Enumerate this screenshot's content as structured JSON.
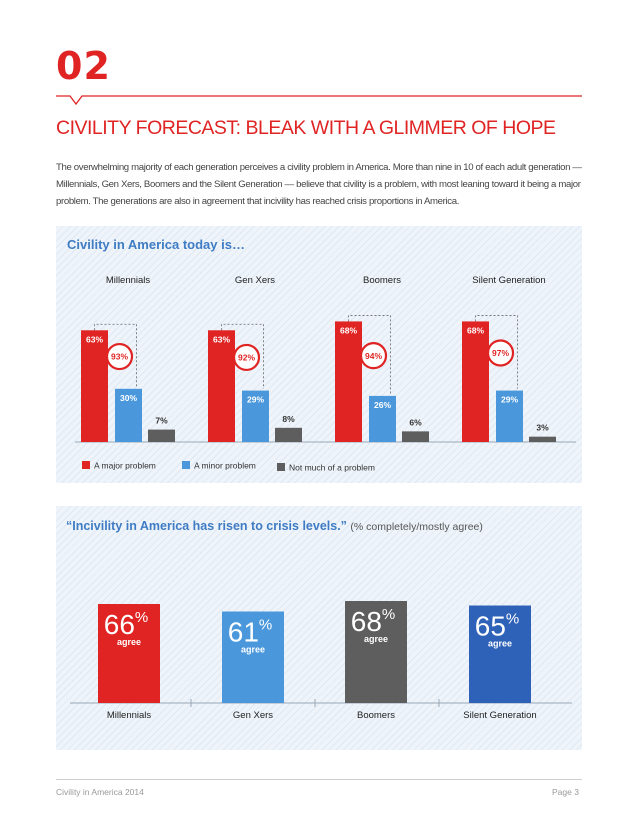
{
  "page": {
    "section_number": "02",
    "headline": "CIVILITY FORECAST: BLEAK WITH A GLIMMER OF HOPE",
    "intro": "The overwhelming majority of each generation perceives a civility problem in America. More than nine in 10 of each adult generation — Millennials, Gen Xers, Boomers and the Silent Generation — believe that civility is a problem, with most leaning toward it being a major problem. The generations are also in agreement that incivility has reached crisis proportions in America.",
    "footer_left": "Civility in America 2014",
    "footer_right": "Page 3"
  },
  "colors": {
    "red": "#e02424",
    "blue": "#4a98db",
    "gray": "#5e5e5e",
    "dark_blue": "#2d62b8"
  },
  "chart_data": [
    {
      "type": "bar",
      "title": "Civility in America today is…",
      "categories": [
        "Millennials",
        "Gen Xers",
        "Boomers",
        "Silent Generation"
      ],
      "series": [
        {
          "name": "A major problem",
          "values": [
            63,
            63,
            68,
            68
          ],
          "color": "#e02424"
        },
        {
          "name": "A minor problem",
          "values": [
            30,
            29,
            26,
            29
          ],
          "color": "#4a98db"
        },
        {
          "name": "Not much of a problem",
          "values": [
            7,
            8,
            6,
            3
          ],
          "color": "#5e5e5e"
        }
      ],
      "combined_labels": [
        "93%",
        "92%",
        "94%",
        "97%"
      ],
      "ylim": [
        0,
        75
      ],
      "legend": "bottom-left"
    },
    {
      "type": "bar",
      "title": "“Incivility in America has risen to crisis levels.”",
      "subtitle": "(% completely/mostly agree)",
      "categories": [
        "Millennials",
        "Gen Xers",
        "Boomers",
        "Silent Generation"
      ],
      "values": [
        66,
        61,
        68,
        65
      ],
      "unit_label": "agree",
      "colors": [
        "#e02424",
        "#4a98db",
        "#5e5e5e",
        "#2d62b8"
      ],
      "ylim": [
        0,
        70
      ]
    }
  ]
}
